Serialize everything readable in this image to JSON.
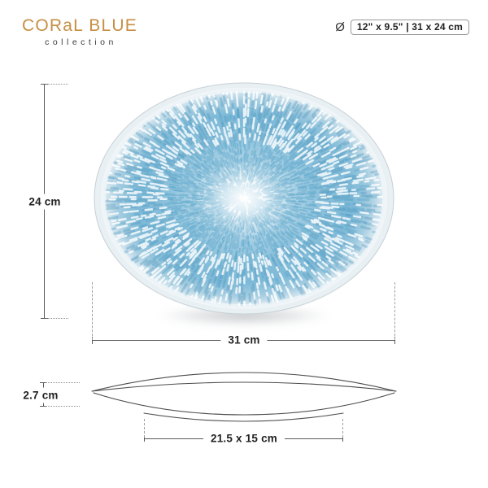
{
  "brand": {
    "name": "CORaL BLUE",
    "tagline": "collection"
  },
  "header_badge": {
    "diameter_symbol": "Ø",
    "size_text": "12\" x 9.5\" | 31 x 24 cm"
  },
  "dimensions": {
    "top_view_height": "24 cm",
    "top_view_width": "31 cm",
    "side_height": "2.7 cm",
    "base_size": "21.5 x 15 cm"
  },
  "colors": {
    "brand_gold": "#c68f44",
    "plate_blue": "#7cb8d6",
    "plate_pale": "#f1f8fb",
    "dimension_line": "#5a5a5a"
  }
}
